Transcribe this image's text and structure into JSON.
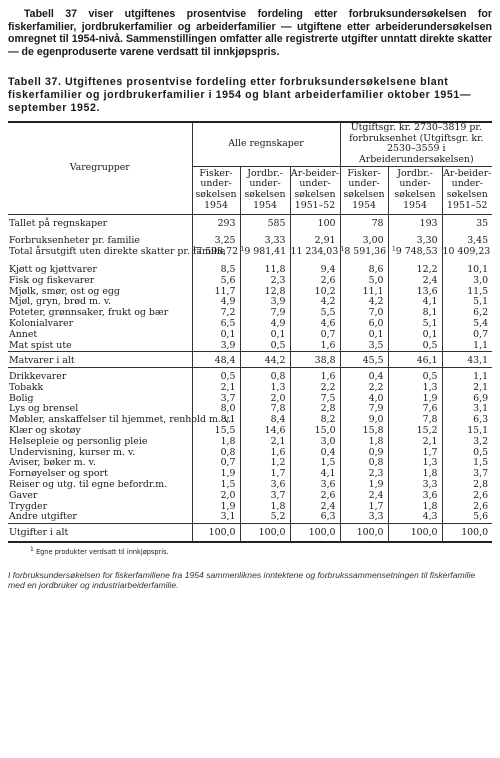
{
  "intro": "Tabell 37 viser utgiftenes prosentvise fordeling etter forbruksundersøkelsen for fiskerfamilier, jordbrukerfamilier og arbeiderfamilier — utgiftene etter arbeiderundersøkelsen omregnet til 1954-nivå. Sammenstillingen omfatter alle registrerte utgifter unntatt direkte skatter — de egenproduserte varene verdsatt til innkjøpspris.",
  "caption": "Tabell 37. Utgiftenes prosentvise fordeling etter forbruksundersøkelsene blant fiskerfamilier og jordbrukerfamilier i 1954 og blant arbeiderfamilier oktober 1951—september 1952.",
  "header": {
    "varegrupper": "Varegrupper",
    "group1": "Alle regnskaper",
    "group2": "Utgiftsgr. kr. 2730–3819 pr. forbruksenhet (Utgiftsgr. kr. 2530–3559 i Arbeiderundersøkelsen)",
    "cols": [
      "Fisker-under-søkelsen 1954",
      "Jordbr.-under-søkelsen 1954",
      "Ar-beider-under-søkelsen 1951–52",
      "Fisker-under-søkelsen 1954",
      "Jordbr.-under-søkelsen 1954",
      "Ar-beider-under-søkelsen 1951–52"
    ]
  },
  "rows": [
    {
      "label": "Tallet på regnskaper",
      "values": [
        "293",
        "585",
        "100",
        "78",
        "193",
        "35"
      ],
      "style": "top"
    },
    {
      "label": "",
      "values": [
        "",
        "",
        "",
        "",
        "",
        ""
      ],
      "style": "gap"
    },
    {
      "label": "Forbruksenheter pr. familie",
      "values": [
        "3,25",
        "3,33",
        "2,91",
        "3,00",
        "3,30",
        "3,45"
      ],
      "style": ""
    },
    {
      "label": "Total årsutgift uten direkte skatter pr. familie",
      "values": [
        "7 598,72",
        "9 981,41",
        "11 234,03",
        "8 591,36",
        "9 748,53",
        "10 409,23"
      ],
      "sup": [
        "1",
        "1",
        "",
        "1",
        "1",
        ""
      ],
      "style": ""
    },
    {
      "label": "",
      "values": [
        "",
        "",
        "",
        "",
        "",
        ""
      ],
      "style": "gap"
    },
    {
      "label": "Kjøtt og kjøttvarer",
      "values": [
        "8,5",
        "11,8",
        "9,4",
        "8,6",
        "12,2",
        "10,1"
      ],
      "style": ""
    },
    {
      "label": "Fisk og fiskevarer",
      "values": [
        "5,6",
        "2,3",
        "2,6",
        "5,0",
        "2,4",
        "3,0"
      ],
      "style": ""
    },
    {
      "label": "Mjølk, smør, ost og egg",
      "values": [
        "11,7",
        "12,8",
        "10,2",
        "11,1",
        "13,6",
        "11,5"
      ],
      "style": ""
    },
    {
      "label": "Mjøl, gryn, brød m. v.",
      "values": [
        "4,9",
        "3,9",
        "4,2",
        "4,2",
        "4,1",
        "5,1"
      ],
      "style": ""
    },
    {
      "label": "Poteter, grønnsaker, frukt og bær",
      "values": [
        "7,2",
        "7,9",
        "5,5",
        "7,0",
        "8,1",
        "6,2"
      ],
      "style": ""
    },
    {
      "label": "Kolonialvarer",
      "values": [
        "6,5",
        "4,9",
        "4,6",
        "6,0",
        "5,1",
        "5,4"
      ],
      "style": ""
    },
    {
      "label": "Annet",
      "values": [
        "0,1",
        "0,1",
        "0,7",
        "0,1",
        "0,1",
        "0,7"
      ],
      "style": ""
    },
    {
      "label": "Mat spist ute",
      "values": [
        "3,9",
        "0,5",
        "1,6",
        "3,5",
        "0,5",
        "1,1"
      ],
      "style": "sepb"
    },
    {
      "label": "Matvarer i alt",
      "values": [
        "48,4",
        "44,2",
        "38,8",
        "45,5",
        "46,1",
        "43,1"
      ],
      "style": "top sepb"
    },
    {
      "label": "Drikkevarer",
      "values": [
        "0,5",
        "0,8",
        "1,6",
        "0,4",
        "0,5",
        "1,1"
      ],
      "style": "top"
    },
    {
      "label": "Tobakk",
      "values": [
        "2,1",
        "1,3",
        "2,2",
        "2,2",
        "1,3",
        "2,1"
      ],
      "style": ""
    },
    {
      "label": "Bolig",
      "values": [
        "3,7",
        "2,0",
        "7,5",
        "4,0",
        "1,9",
        "6,9"
      ],
      "style": ""
    },
    {
      "label": "Lys og brensel",
      "values": [
        "8,0",
        "7,8",
        "2,8",
        "7,9",
        "7,6",
        "3,1"
      ],
      "style": ""
    },
    {
      "label": "Møbler, anskaffelser til hjemmet, renhold m. v.",
      "values": [
        "8,1",
        "8,4",
        "8,2",
        "9,0",
        "7,8",
        "6,3"
      ],
      "style": ""
    },
    {
      "label": "Klær og skotøy",
      "values": [
        "15,5",
        "14,6",
        "15,0",
        "15,8",
        "15,2",
        "15,1"
      ],
      "style": ""
    },
    {
      "label": "Helsepleie og personlig pleie",
      "values": [
        "1,8",
        "2,1",
        "3,0",
        "1,8",
        "2,1",
        "3,2"
      ],
      "style": ""
    },
    {
      "label": "Undervisning, kurser m. v.",
      "values": [
        "0,8",
        "1,6",
        "0,4",
        "0,9",
        "1,7",
        "0,5"
      ],
      "style": ""
    },
    {
      "label": "Aviser, bøker m. v.",
      "values": [
        "0,7",
        "1,2",
        "1,5",
        "0,8",
        "1,3",
        "1,5"
      ],
      "style": ""
    },
    {
      "label": "Fornøyelser og sport",
      "values": [
        "1,9",
        "1,7",
        "4,1",
        "2,3",
        "1,8",
        "3,7"
      ],
      "style": ""
    },
    {
      "label": "Reiser og utg. til egne befordr.m.",
      "values": [
        "1,5",
        "3,6",
        "3,6",
        "1,9",
        "3,3",
        "2,8"
      ],
      "style": ""
    },
    {
      "label": "Gaver",
      "values": [
        "2,0",
        "3,7",
        "2,6",
        "2,4",
        "3,6",
        "2,6"
      ],
      "style": ""
    },
    {
      "label": "Trygder",
      "values": [
        "1,9",
        "1,8",
        "2,4",
        "1,7",
        "1,8",
        "2,6"
      ],
      "style": ""
    },
    {
      "label": "Andre utgifter",
      "values": [
        "3,1",
        "5,2",
        "6,3",
        "3,3",
        "4,3",
        "5,6"
      ],
      "style": "sepb"
    },
    {
      "label": "Utgifter i alt",
      "values": [
        "100,0",
        "100,0",
        "100,0",
        "100,0",
        "100,0",
        "100,0"
      ],
      "style": "top last"
    }
  ],
  "footnote": {
    "marker": "1",
    "text": "Egne produkter verdsatt til innkjøpspris."
  },
  "bottom_note": "I forbruksundersøkelsen for fiskerfamiliene fra 1954 sammenliknes inntektene og forbrukssammensetningen til fiskerfamilie med en jordbruker og industriarbeiderfamilie."
}
